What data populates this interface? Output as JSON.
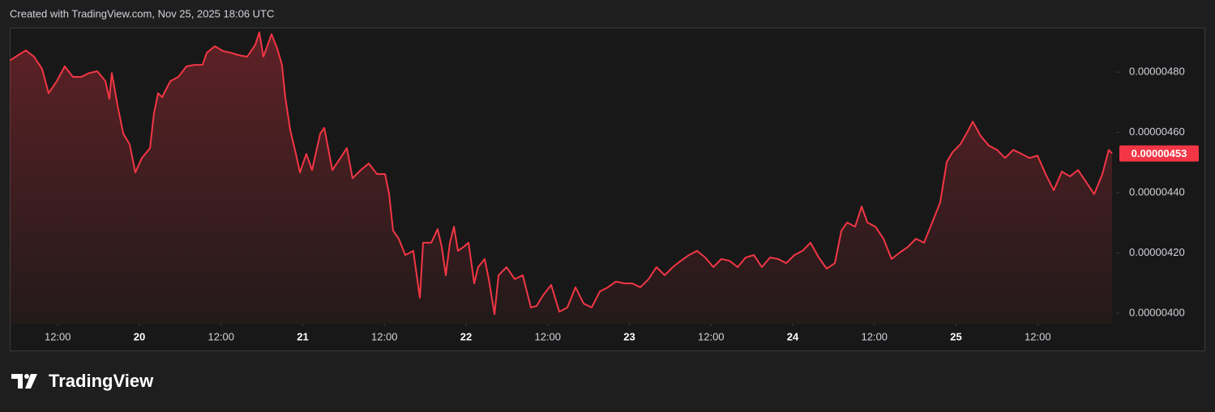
{
  "header": "Created with TradingView.com, Nov 25, 2025 18:06 UTC",
  "brand": "TradingView",
  "chart_data": {
    "type": "line",
    "color": "#f23645",
    "grid": false,
    "xlim": [
      19.206,
      25.97
    ],
    "ylim": [
      3.965e-06,
      4.948e-06
    ],
    "xticks": [
      {
        "value": 19.5,
        "label": "12:00"
      },
      20,
      {
        "value": 20.5,
        "label": "12:00"
      },
      21,
      {
        "value": 21.5,
        "label": "12:00"
      },
      22,
      {
        "value": 22.5,
        "label": "12:00"
      },
      23,
      {
        "value": 23.5,
        "label": "12:00"
      },
      24,
      {
        "value": 24.5,
        "label": "12:00"
      },
      25,
      {
        "value": 25.5,
        "label": "12:00"
      }
    ],
    "yticks": [
      {
        "value": 4e-06,
        "label": "0.00000400"
      },
      {
        "value": 4.2e-06,
        "label": "0.00000420"
      },
      {
        "value": 4.4e-06,
        "label": "0.00000440"
      },
      {
        "value": 4.6e-06,
        "label": "0.00000460"
      },
      {
        "value": 4.8e-06,
        "label": "0.00000480"
      }
    ],
    "last_price": {
      "value": 4.53e-06,
      "label": "0.00000453"
    },
    "x": [
      19.206,
      19.256,
      19.305,
      19.355,
      19.404,
      19.444,
      19.494,
      19.543,
      19.593,
      19.643,
      19.692,
      19.742,
      19.792,
      19.816,
      19.831,
      19.866,
      19.901,
      19.94,
      19.975,
      20.015,
      20.065,
      20.089,
      20.114,
      20.139,
      20.189,
      20.238,
      20.288,
      20.337,
      20.387,
      20.412,
      20.462,
      20.511,
      20.561,
      20.61,
      20.66,
      20.71,
      20.734,
      20.759,
      20.809,
      20.844,
      20.873,
      20.893,
      20.923,
      20.958,
      20.983,
      21.022,
      21.057,
      21.107,
      21.132,
      21.181,
      21.231,
      21.27,
      21.305,
      21.355,
      21.404,
      21.454,
      21.504,
      21.529,
      21.553,
      21.588,
      21.628,
      21.677,
      21.717,
      21.737,
      21.787,
      21.826,
      21.851,
      21.876,
      21.901,
      21.926,
      21.95,
      21.985,
      22.015,
      22.05,
      22.074,
      22.114,
      22.139,
      22.174,
      22.199,
      22.248,
      22.298,
      22.347,
      22.372,
      22.397,
      22.432,
      22.471,
      22.521,
      22.571,
      22.62,
      22.67,
      22.72,
      22.769,
      22.819,
      22.868,
      22.918,
      22.968,
      23.017,
      23.067,
      23.117,
      23.166,
      23.216,
      23.266,
      23.315,
      23.365,
      23.414,
      23.464,
      23.514,
      23.563,
      23.613,
      23.663,
      23.712,
      23.762,
      23.811,
      23.861,
      23.911,
      23.96,
      24.01,
      24.06,
      24.109,
      24.159,
      24.208,
      24.258,
      24.298,
      24.333,
      24.382,
      24.422,
      24.457,
      24.506,
      24.556,
      24.605,
      24.655,
      24.705,
      24.754,
      24.804,
      24.854,
      24.903,
      24.943,
      24.978,
      25.027,
      25.077,
      25.102,
      25.151,
      25.201,
      25.251,
      25.3,
      25.35,
      25.4,
      25.449,
      25.499,
      25.548,
      25.598,
      25.648,
      25.697,
      25.747,
      25.797,
      25.846,
      25.896,
      25.935,
      25.955
    ],
    "values": [
      4.838e-06,
      4.856e-06,
      4.872e-06,
      4.851e-06,
      4.811e-06,
      4.73e-06,
      4.77e-06,
      4.819e-06,
      4.784e-06,
      4.784e-06,
      4.797e-06,
      4.803e-06,
      4.77e-06,
      4.711e-06,
      4.797e-06,
      4.69e-06,
      4.596e-06,
      4.561e-06,
      4.467e-06,
      4.515e-06,
      4.548e-06,
      4.663e-06,
      4.73e-06,
      4.717e-06,
      4.77e-06,
      4.784e-06,
      4.819e-06,
      4.824e-06,
      4.824e-06,
      4.864e-06,
      4.886e-06,
      4.87e-06,
      4.864e-06,
      4.856e-06,
      4.851e-06,
      4.891e-06,
      4.932e-06,
      4.851e-06,
      4.926e-06,
      4.878e-06,
      4.824e-06,
      4.717e-06,
      4.609e-06,
      4.529e-06,
      4.467e-06,
      4.529e-06,
      4.475e-06,
      4.596e-06,
      4.615e-06,
      4.475e-06,
      4.515e-06,
      4.548e-06,
      4.448e-06,
      4.475e-06,
      4.497e-06,
      4.462e-06,
      4.462e-06,
      4.395e-06,
      4.274e-06,
      4.247e-06,
      4.193e-06,
      4.207e-06,
      4.051e-06,
      4.234e-06,
      4.234e-06,
      4.279e-06,
      4.22e-06,
      4.126e-06,
      4.234e-06,
      4.287e-06,
      4.207e-06,
      4.22e-06,
      4.234e-06,
      4.099e-06,
      4.153e-06,
      4.18e-06,
      4.113e-06,
      3.997e-06,
      4.126e-06,
      4.153e-06,
      4.113e-06,
      4.126e-06,
      4.072e-06,
      4.019e-06,
      4.024e-06,
      4.059e-06,
      4.094e-06,
      4.005e-06,
      4.019e-06,
      4.086e-06,
      4.032e-06,
      4.019e-06,
      4.072e-06,
      4.086e-06,
      4.105e-06,
      4.099e-06,
      4.099e-06,
      4.086e-06,
      4.113e-06,
      4.153e-06,
      4.126e-06,
      4.153e-06,
      4.174e-06,
      4.193e-06,
      4.207e-06,
      4.185e-06,
      4.153e-06,
      4.18e-06,
      4.174e-06,
      4.153e-06,
      4.185e-06,
      4.193e-06,
      4.153e-06,
      4.185e-06,
      4.18e-06,
      4.166e-06,
      4.193e-06,
      4.207e-06,
      4.234e-06,
      4.185e-06,
      4.148e-06,
      4.166e-06,
      4.274e-06,
      4.301e-06,
      4.287e-06,
      4.354e-06,
      4.301e-06,
      4.287e-06,
      4.247e-06,
      4.18e-06,
      4.201e-06,
      4.22e-06,
      4.247e-06,
      4.234e-06,
      4.301e-06,
      4.368e-06,
      4.502e-06,
      4.534e-06,
      4.561e-06,
      4.609e-06,
      4.636e-06,
      4.588e-06,
      4.556e-06,
      4.542e-06,
      4.515e-06,
      4.542e-06,
      4.529e-06,
      4.515e-06,
      4.523e-06,
      4.462e-06,
      4.408e-06,
      4.47e-06,
      4.454e-06,
      4.475e-06,
      4.435e-06,
      4.395e-06,
      4.462e-06,
      4.542e-06,
      4.53e-06
    ]
  }
}
